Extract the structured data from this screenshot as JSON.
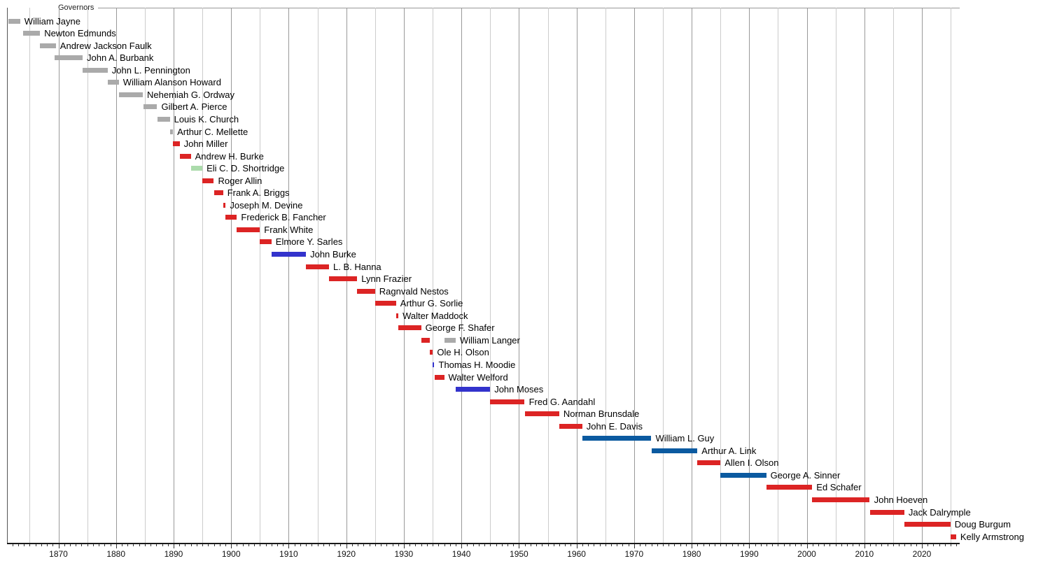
{
  "title": "Governors",
  "chart_data": {
    "type": "bar",
    "subtype": "timeline-gantt",
    "title": "Governors",
    "xlabel": "",
    "ylabel": "",
    "legend_position": "none",
    "grid": "on",
    "x_axis": {
      "min_year": 1861.1,
      "max_year": 2026.6,
      "decade_labels": [
        "1870",
        "1880",
        "1890",
        "1900",
        "1910",
        "1920",
        "1930",
        "1940",
        "1950",
        "1960",
        "1970",
        "1980",
        "1990",
        "2000",
        "2010",
        "2020"
      ],
      "decade_label_years": [
        1870,
        1880,
        1890,
        1900,
        1910,
        1920,
        1930,
        1940,
        1950,
        1960,
        1970,
        1980,
        1990,
        2000,
        2010,
        2020
      ],
      "gridline_step_years": 5,
      "minor_tick_step_years": 1
    },
    "party_colors": {
      "territorial": "#aaaaaa",
      "republican": "#dc2424",
      "democratic": "#3333cc",
      "democratic_npl": "#0b5aa0",
      "independent_populist": "#abdbab",
      "independent_gray": "#aaaaaa"
    },
    "governors": [
      {
        "name": "William Jayne",
        "segments": [
          {
            "start": 1861.35,
            "end": 1863.35,
            "party": "territorial"
          }
        ]
      },
      {
        "name": "Newton Edmunds",
        "segments": [
          {
            "start": 1863.85,
            "end": 1866.8,
            "party": "territorial"
          }
        ]
      },
      {
        "name": "Andrew Jackson Faulk",
        "segments": [
          {
            "start": 1866.8,
            "end": 1869.55,
            "party": "territorial"
          }
        ]
      },
      {
        "name": "John A. Burbank",
        "segments": [
          {
            "start": 1869.35,
            "end": 1874.2,
            "party": "territorial"
          }
        ]
      },
      {
        "name": "John L. Pennington",
        "segments": [
          {
            "start": 1874.2,
            "end": 1878.55,
            "party": "territorial"
          }
        ]
      },
      {
        "name": "William Alanson Howard",
        "segments": [
          {
            "start": 1878.55,
            "end": 1880.5,
            "party": "territorial"
          }
        ]
      },
      {
        "name": "Nehemiah G. Ordway",
        "segments": [
          {
            "start": 1880.55,
            "end": 1884.65,
            "party": "territorial"
          }
        ]
      },
      {
        "name": "Gilbert A. Pierce",
        "segments": [
          {
            "start": 1884.75,
            "end": 1887.15,
            "party": "territorial"
          }
        ]
      },
      {
        "name": "Louis K. Church",
        "segments": [
          {
            "start": 1887.25,
            "end": 1889.35,
            "party": "territorial"
          }
        ]
      },
      {
        "name": "Arthur C. Mellette",
        "segments": [
          {
            "start": 1889.4,
            "end": 1889.9,
            "party": "territorial"
          }
        ]
      },
      {
        "name": "John Miller",
        "segments": [
          {
            "start": 1889.9,
            "end": 1891.05,
            "party": "republican"
          }
        ]
      },
      {
        "name": "Andrew H. Burke",
        "segments": [
          {
            "start": 1891.05,
            "end": 1893.0,
            "party": "republican"
          }
        ]
      },
      {
        "name": "Eli C. D. Shortridge",
        "segments": [
          {
            "start": 1893.0,
            "end": 1895.0,
            "party": "independent_populist"
          }
        ]
      },
      {
        "name": "Roger Allin",
        "segments": [
          {
            "start": 1895.0,
            "end": 1897.0,
            "party": "republican"
          }
        ]
      },
      {
        "name": "Frank A. Briggs",
        "segments": [
          {
            "start": 1897.0,
            "end": 1898.6,
            "party": "republican"
          }
        ]
      },
      {
        "name": "Joseph M. Devine",
        "segments": [
          {
            "start": 1898.6,
            "end": 1899.05,
            "party": "republican"
          }
        ]
      },
      {
        "name": "Frederick B. Fancher",
        "segments": [
          {
            "start": 1899.05,
            "end": 1901.0,
            "party": "republican"
          }
        ]
      },
      {
        "name": "Frank White",
        "segments": [
          {
            "start": 1901.0,
            "end": 1905.0,
            "party": "republican"
          }
        ]
      },
      {
        "name": "Elmore Y. Sarles",
        "segments": [
          {
            "start": 1905.0,
            "end": 1907.0,
            "party": "republican"
          }
        ]
      },
      {
        "name": "John Burke",
        "segments": [
          {
            "start": 1907.0,
            "end": 1913.0,
            "party": "democratic"
          }
        ]
      },
      {
        "name": "L. B. Hanna",
        "segments": [
          {
            "start": 1913.0,
            "end": 1917.0,
            "party": "republican"
          }
        ]
      },
      {
        "name": "Lynn Frazier",
        "segments": [
          {
            "start": 1917.0,
            "end": 1921.9,
            "party": "republican"
          }
        ]
      },
      {
        "name": "Ragnvald Nestos",
        "segments": [
          {
            "start": 1921.9,
            "end": 1925.0,
            "party": "republican"
          }
        ]
      },
      {
        "name": "Arthur G. Sorlie",
        "segments": [
          {
            "start": 1925.0,
            "end": 1928.65,
            "party": "republican"
          }
        ]
      },
      {
        "name": "Walter Maddock",
        "segments": [
          {
            "start": 1928.65,
            "end": 1929.05,
            "party": "republican"
          }
        ]
      },
      {
        "name": "George F. Shafer",
        "segments": [
          {
            "start": 1929.05,
            "end": 1933.0,
            "party": "republican"
          }
        ]
      },
      {
        "name": "William Langer",
        "segments": [
          {
            "start": 1933.0,
            "end": 1934.55,
            "party": "republican"
          },
          {
            "start": 1937.0,
            "end": 1939.0,
            "party": "independent_gray"
          }
        ]
      },
      {
        "name": "Ole H. Olson",
        "segments": [
          {
            "start": 1934.55,
            "end": 1935.05,
            "party": "republican"
          }
        ]
      },
      {
        "name": "Thomas H. Moodie",
        "segments": [
          {
            "start": 1935.05,
            "end": 1935.3,
            "party": "democratic"
          }
        ]
      },
      {
        "name": "Walter Welford",
        "segments": [
          {
            "start": 1935.3,
            "end": 1937.0,
            "party": "republican"
          }
        ]
      },
      {
        "name": "John Moses",
        "segments": [
          {
            "start": 1939.0,
            "end": 1945.0,
            "party": "democratic"
          }
        ]
      },
      {
        "name": "Fred G. Aandahl",
        "segments": [
          {
            "start": 1945.0,
            "end": 1951.0,
            "party": "republican"
          }
        ]
      },
      {
        "name": "Norman Brunsdale",
        "segments": [
          {
            "start": 1951.0,
            "end": 1957.0,
            "party": "republican"
          }
        ]
      },
      {
        "name": "John E. Davis",
        "segments": [
          {
            "start": 1957.0,
            "end": 1961.0,
            "party": "republican"
          }
        ]
      },
      {
        "name": "William L. Guy",
        "segments": [
          {
            "start": 1961.0,
            "end": 1973.0,
            "party": "democratic_npl"
          }
        ]
      },
      {
        "name": "Arthur A. Link",
        "segments": [
          {
            "start": 1973.0,
            "end": 1981.0,
            "party": "democratic_npl"
          }
        ]
      },
      {
        "name": "Allen I. Olson",
        "segments": [
          {
            "start": 1981.0,
            "end": 1985.0,
            "party": "republican"
          }
        ]
      },
      {
        "name": "George A. Sinner",
        "segments": [
          {
            "start": 1985.0,
            "end": 1992.95,
            "party": "democratic_npl"
          }
        ]
      },
      {
        "name": "Ed Schafer",
        "segments": [
          {
            "start": 1992.95,
            "end": 2000.95,
            "party": "republican"
          }
        ]
      },
      {
        "name": "John Hoeven",
        "segments": [
          {
            "start": 2000.95,
            "end": 2010.95,
            "party": "republican"
          }
        ]
      },
      {
        "name": "Jack Dalrymple",
        "segments": [
          {
            "start": 2010.95,
            "end": 2016.95,
            "party": "republican"
          }
        ]
      },
      {
        "name": "Doug Burgum",
        "segments": [
          {
            "start": 2016.95,
            "end": 2024.95,
            "party": "republican"
          }
        ]
      },
      {
        "name": "Kelly Armstrong",
        "segments": [
          {
            "start": 2024.95,
            "end": 2025.95,
            "party": "republican"
          }
        ]
      }
    ]
  }
}
